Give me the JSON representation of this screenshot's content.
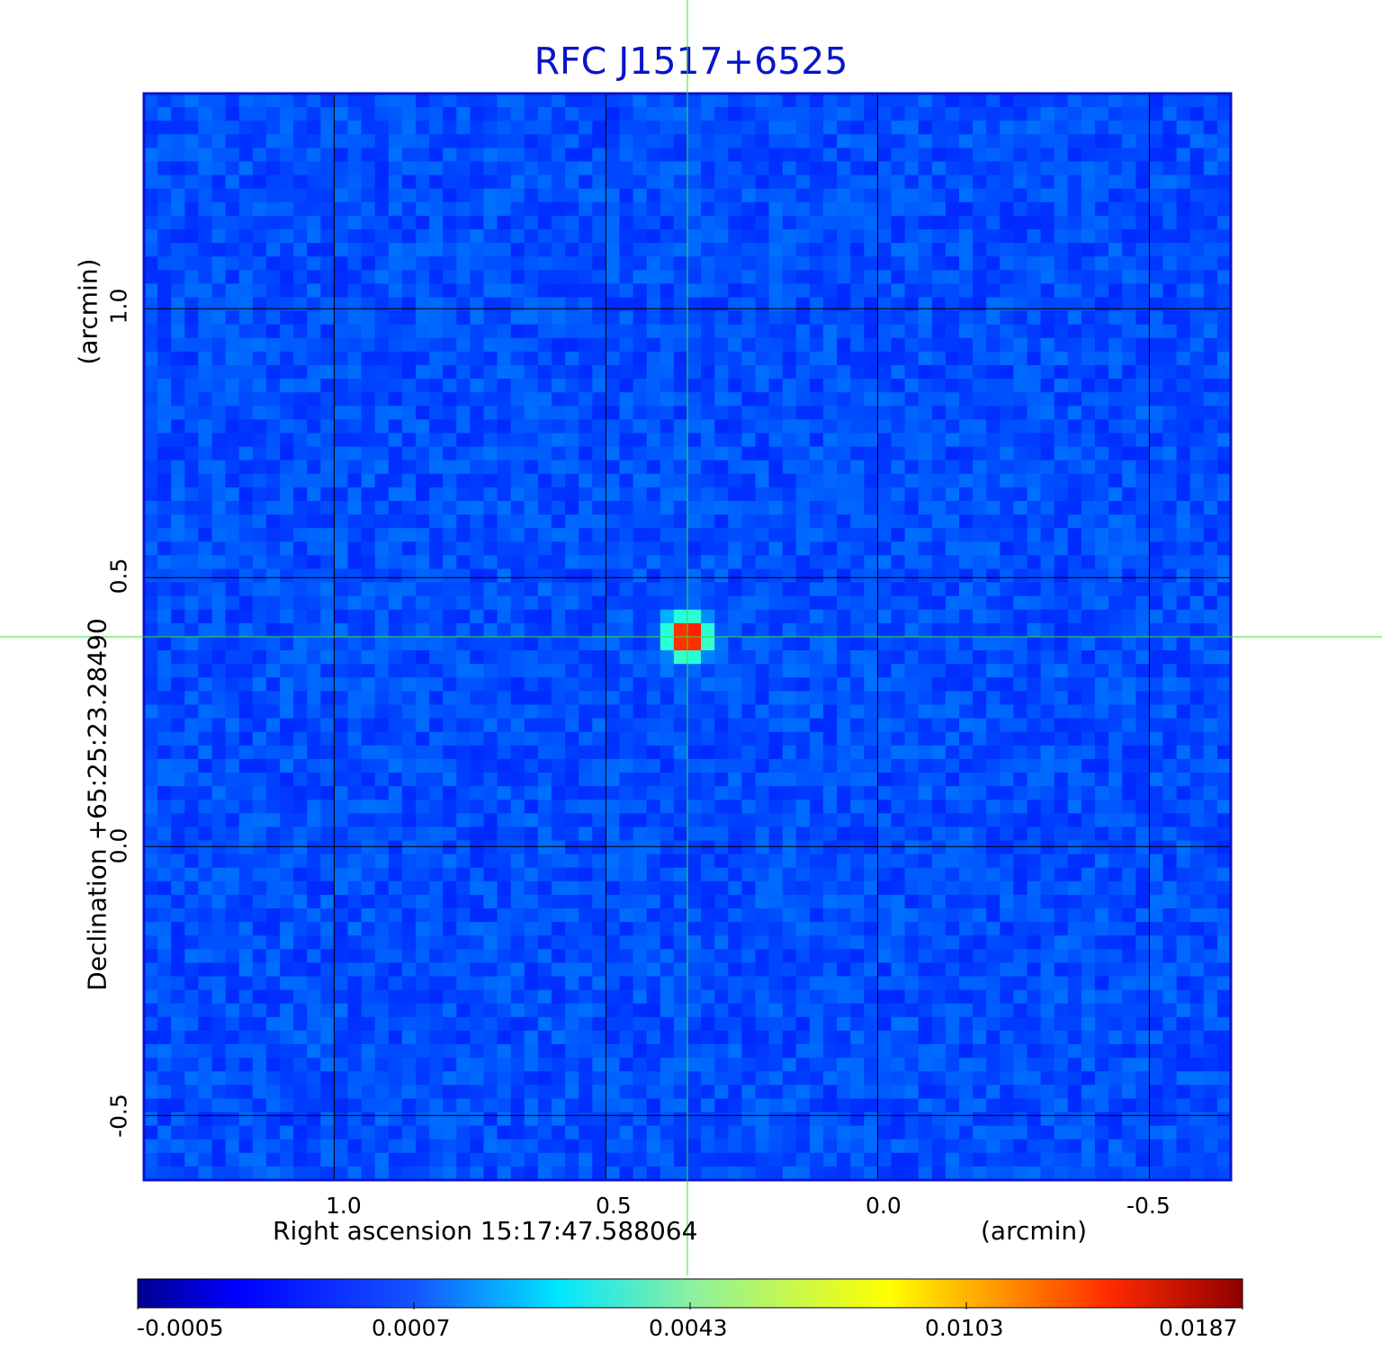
{
  "chart_data": {
    "type": "heatmap",
    "title": "RFC J1517+6525",
    "xlabel": "Right ascension  15:17:47.588064",
    "xunit": "(arcmin)",
    "ylabel": "Declination  +65:25:23.28490",
    "yunit": "(arcmin)",
    "x_direction": "decreasing to the right",
    "xlim": [
      1.35,
      -0.65
    ],
    "ylim": [
      -0.62,
      1.4
    ],
    "xticks": [
      1.0,
      0.5,
      0.0,
      -0.5
    ],
    "xtick_labels": [
      "1.0",
      "0.5",
      "0.0",
      "-0.5"
    ],
    "yticks": [
      1.0,
      0.5,
      0.0,
      -0.5
    ],
    "ytick_labels": [
      "1.0",
      "0.5",
      "0.0",
      "-0.5"
    ],
    "grid": true,
    "colormap": "jet",
    "colorbar_ticks": [
      -0.0005,
      0.0007,
      0.0043,
      0.0103,
      0.0187
    ],
    "colorbar_labels": [
      "-0.0005",
      "0.0007",
      "0.0043",
      "0.0103",
      "0.0187"
    ],
    "background_level": 0.0002,
    "source": {
      "ra_offset_arcmin": 0.35,
      "dec_offset_arcmin": 0.39,
      "peak": 0.0187
    },
    "crosshair": {
      "ra_offset_arcmin": 0.35,
      "dec_offset_arcmin": 0.39,
      "color": "#2fe62f"
    }
  },
  "colors": {
    "frame": "#0a14c8",
    "grid": "#000000",
    "title": "#0a14c8"
  }
}
